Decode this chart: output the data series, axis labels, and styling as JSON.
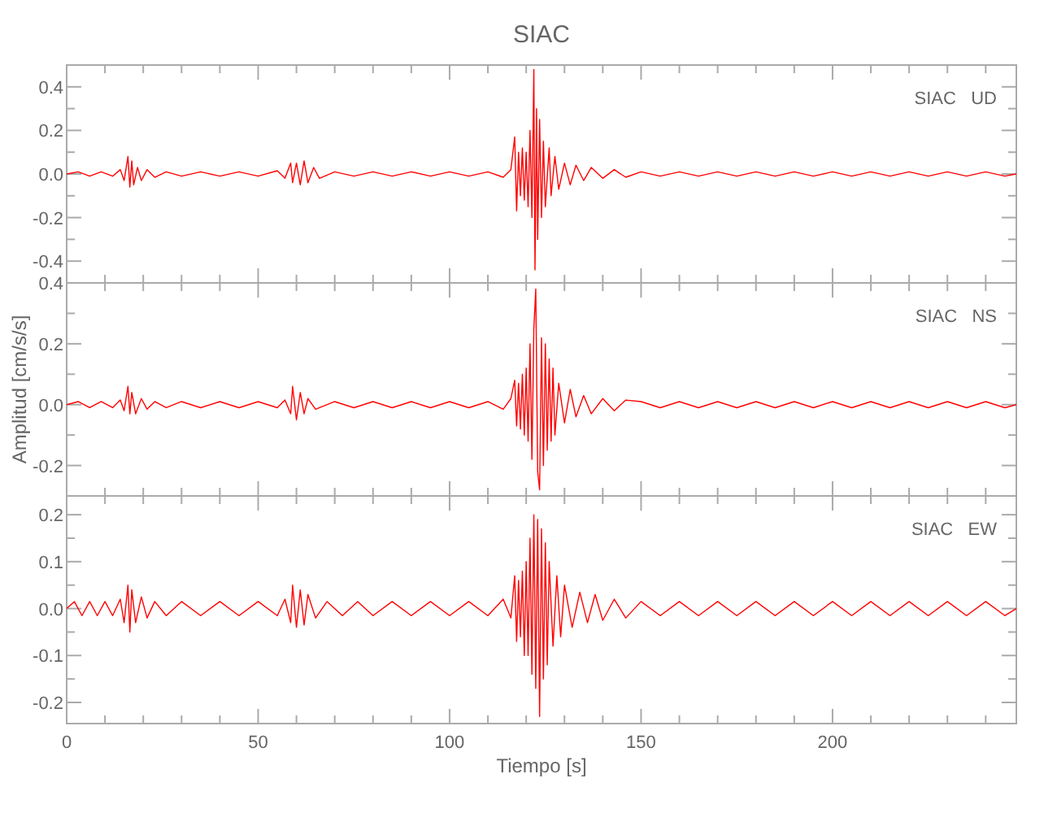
{
  "chart_data": [
    {
      "type": "line",
      "title": "SIAC",
      "annotations": [
        "SIAC   UD"
      ],
      "xlim": [
        0,
        248
      ],
      "xticks": [
        0,
        {
          "value": 10,
          "label": null
        },
        {
          "value": 20,
          "label": null
        },
        {
          "value": 30,
          "label": null
        },
        {
          "value": 40,
          "label": null
        },
        50,
        {
          "value": 60,
          "label": null
        },
        {
          "value": 70,
          "label": null
        },
        {
          "value": 80,
          "label": null
        },
        {
          "value": 90,
          "label": null
        },
        100,
        {
          "value": 110,
          "label": null
        },
        {
          "value": 120,
          "label": null
        },
        {
          "value": 130,
          "label": null
        },
        {
          "value": 140,
          "label": null
        },
        150,
        {
          "value": 160,
          "label": null
        },
        {
          "value": 170,
          "label": null
        },
        {
          "value": 180,
          "label": null
        },
        {
          "value": 190,
          "label": null
        },
        200,
        {
          "value": 210,
          "label": null
        },
        {
          "value": 220,
          "label": null
        },
        {
          "value": 230,
          "label": null
        },
        {
          "value": 240,
          "label": null
        }
      ],
      "ylim": [
        -0.5,
        0.5
      ],
      "yticks": [
        {
          "value": -0.4,
          "label": "-0.4"
        },
        {
          "value": -0.3,
          "label": null
        },
        {
          "value": -0.2,
          "label": "-0.2"
        },
        {
          "value": -0.1,
          "label": null
        },
        {
          "value": 0,
          "label": "0.0"
        },
        {
          "value": 0.1,
          "label": null
        },
        0.2,
        {
          "value": 0.3,
          "label": null
        },
        0.4
      ],
      "tick_labels": "y",
      "grid": false,
      "series": [
        {
          "color": "#ff0000",
          "x": [
            0,
            3,
            6,
            9,
            12,
            14,
            15,
            16,
            16.5,
            17,
            17.5,
            18.5,
            19.5,
            21,
            23,
            26,
            30,
            35,
            40,
            45,
            50,
            55,
            57,
            58.5,
            59,
            60,
            61,
            62,
            63,
            64.5,
            66,
            70,
            75,
            80,
            85,
            90,
            95,
            100,
            105,
            110,
            114,
            116,
            117,
            117.5,
            118,
            118.5,
            119,
            119.5,
            120,
            120.5,
            121,
            121.5,
            122,
            122.3,
            122.7,
            123,
            123.5,
            124,
            124.5,
            125,
            126,
            126.5,
            127.5,
            128.5,
            130,
            131.5,
            133,
            135,
            137,
            140,
            143,
            146,
            150,
            155,
            160,
            165,
            170,
            175,
            180,
            185,
            190,
            195,
            200,
            205,
            210,
            215,
            220,
            225,
            230,
            235,
            240,
            245,
            248
          ],
          "values": [
            0,
            0.01,
            -0.01,
            0.01,
            -0.01,
            0.02,
            -0.03,
            0.08,
            -0.06,
            0.06,
            -0.05,
            0.03,
            -0.03,
            0.02,
            -0.015,
            0.01,
            -0.01,
            0.01,
            -0.01,
            0.01,
            -0.01,
            0.015,
            -0.02,
            0.05,
            -0.04,
            0.05,
            -0.05,
            0.06,
            -0.04,
            0.03,
            -0.02,
            0.01,
            -0.01,
            0.01,
            -0.01,
            0.01,
            -0.01,
            0.01,
            -0.01,
            0.01,
            -0.015,
            0.02,
            0.17,
            -0.17,
            0.1,
            -0.1,
            0.12,
            -0.12,
            0.1,
            -0.15,
            0.2,
            -0.2,
            0.48,
            -0.44,
            0.3,
            -0.3,
            0.25,
            -0.2,
            0.15,
            -0.15,
            0.12,
            -0.1,
            0.08,
            -0.07,
            0.05,
            -0.05,
            0.04,
            -0.03,
            0.03,
            -0.02,
            0.02,
            -0.015,
            0.01,
            -0.01,
            0.01,
            -0.01,
            0.01,
            -0.01,
            0.01,
            -0.01,
            0.01,
            -0.01,
            0.01,
            -0.01,
            0.01,
            -0.01,
            0.01,
            -0.01,
            0.01,
            -0.01,
            0.01,
            -0.01,
            0
          ]
        }
      ]
    },
    {
      "type": "line",
      "ylabel": "Amplitud [cm/s/s]",
      "annotations": [
        "SIAC   NS"
      ],
      "xlim": [
        0,
        248
      ],
      "xticks": [
        0,
        {
          "value": 10,
          "label": null
        },
        {
          "value": 20,
          "label": null
        },
        {
          "value": 30,
          "label": null
        },
        {
          "value": 40,
          "label": null
        },
        50,
        {
          "value": 60,
          "label": null
        },
        {
          "value": 70,
          "label": null
        },
        {
          "value": 80,
          "label": null
        },
        {
          "value": 90,
          "label": null
        },
        100,
        {
          "value": 110,
          "label": null
        },
        {
          "value": 120,
          "label": null
        },
        {
          "value": 130,
          "label": null
        },
        {
          "value": 140,
          "label": null
        },
        150,
        {
          "value": 160,
          "label": null
        },
        {
          "value": 170,
          "label": null
        },
        {
          "value": 180,
          "label": null
        },
        {
          "value": 190,
          "label": null
        },
        200,
        {
          "value": 210,
          "label": null
        },
        {
          "value": 220,
          "label": null
        },
        {
          "value": 230,
          "label": null
        },
        {
          "value": 240,
          "label": null
        }
      ],
      "ylim": [
        -0.3,
        0.4
      ],
      "yticks": [
        {
          "value": -0.3,
          "label": null
        },
        {
          "value": -0.2,
          "label": "-0.2"
        },
        {
          "value": -0.1,
          "label": null
        },
        {
          "value": 0,
          "label": "0.0"
        },
        {
          "value": 0.1,
          "label": null
        },
        0.2,
        {
          "value": 0.3,
          "label": null
        },
        0.4
      ],
      "tick_labels": "y",
      "grid": false,
      "series": [
        {
          "color": "#ff0000",
          "x": [
            0,
            3,
            6,
            9,
            12,
            14,
            15,
            16,
            16.5,
            17,
            18,
            19.5,
            21,
            23,
            26,
            30,
            35,
            40,
            45,
            50,
            55,
            57,
            58.5,
            59,
            60,
            61,
            62,
            63,
            65,
            70,
            75,
            80,
            85,
            90,
            95,
            100,
            105,
            110,
            114,
            116,
            117,
            117.5,
            118,
            118.5,
            119,
            119.5,
            120,
            120.5,
            121,
            121.5,
            122,
            122.5,
            123,
            123.5,
            124,
            124.5,
            125,
            125.5,
            126,
            126.5,
            127,
            127.5,
            128.5,
            130,
            131.5,
            133,
            135,
            137,
            140,
            143,
            146,
            150,
            155,
            160,
            165,
            170,
            175,
            180,
            185,
            190,
            195,
            200,
            205,
            210,
            215,
            220,
            225,
            230,
            235,
            240,
            245,
            248
          ],
          "values": [
            0,
            0.01,
            -0.01,
            0.01,
            -0.01,
            0.015,
            -0.02,
            0.06,
            -0.03,
            0.04,
            -0.03,
            0.02,
            -0.015,
            0.01,
            -0.01,
            0.01,
            -0.01,
            0.01,
            -0.01,
            0.01,
            -0.01,
            0.015,
            -0.03,
            0.06,
            -0.05,
            0.04,
            -0.03,
            0.02,
            -0.015,
            0.01,
            -0.01,
            0.01,
            -0.01,
            0.01,
            -0.01,
            0.01,
            -0.01,
            0.01,
            -0.015,
            0.02,
            0.08,
            -0.07,
            0.07,
            -0.08,
            0.1,
            -0.1,
            0.12,
            -0.12,
            0.2,
            -0.18,
            0.25,
            0.38,
            -0.22,
            -0.28,
            0.22,
            -0.2,
            0.2,
            -0.15,
            0.15,
            -0.12,
            0.12,
            -0.1,
            0.07,
            -0.06,
            0.05,
            -0.04,
            0.03,
            -0.03,
            0.02,
            -0.02,
            0.015,
            0.01,
            -0.01,
            0.01,
            -0.01,
            0.01,
            -0.01,
            0.01,
            -0.01,
            0.01,
            -0.01,
            0.01,
            -0.01,
            0.01,
            -0.01,
            0.01,
            -0.01,
            0.01,
            -0.01,
            0.01,
            -0.01,
            0
          ]
        }
      ]
    },
    {
      "type": "line",
      "xlabel": "Tiempo [s]",
      "annotations": [
        "SIAC   EW"
      ],
      "xlim": [
        0,
        248
      ],
      "xticks": [
        0,
        {
          "value": 10,
          "label": null
        },
        {
          "value": 20,
          "label": null
        },
        {
          "value": 30,
          "label": null
        },
        {
          "value": 40,
          "label": null
        },
        50,
        {
          "value": 60,
          "label": null
        },
        {
          "value": 70,
          "label": null
        },
        {
          "value": 80,
          "label": null
        },
        {
          "value": 90,
          "label": null
        },
        100,
        {
          "value": 110,
          "label": null
        },
        {
          "value": 120,
          "label": null
        },
        {
          "value": 130,
          "label": null
        },
        {
          "value": 140,
          "label": null
        },
        150,
        {
          "value": 160,
          "label": null
        },
        {
          "value": 170,
          "label": null
        },
        {
          "value": 180,
          "label": null
        },
        {
          "value": 190,
          "label": null
        },
        200,
        {
          "value": 210,
          "label": null
        },
        {
          "value": 220,
          "label": null
        },
        {
          "value": 230,
          "label": null
        },
        {
          "value": 240,
          "label": null
        }
      ],
      "ylim": [
        -0.245,
        0.24
      ],
      "yticks": [
        {
          "value": -0.2,
          "label": "-0.2"
        },
        {
          "value": -0.15,
          "label": null
        },
        {
          "value": -0.1,
          "label": "-0.1"
        },
        {
          "value": -0.05,
          "label": null
        },
        {
          "value": 0,
          "label": "0.0"
        },
        {
          "value": 0.05,
          "label": null
        },
        0.1,
        {
          "value": 0.15,
          "label": null
        },
        0.2
      ],
      "grid": false,
      "series": [
        {
          "color": "#ff0000",
          "x": [
            0,
            2,
            4,
            6,
            8,
            10,
            12,
            14,
            15,
            16,
            16.5,
            17,
            18,
            19.5,
            21,
            23,
            26,
            30,
            35,
            40,
            45,
            50,
            55,
            57,
            58.5,
            59,
            60,
            61,
            62,
            63,
            65,
            68,
            72,
            76,
            80,
            85,
            90,
            95,
            100,
            105,
            110,
            114,
            116,
            117,
            117.5,
            118,
            118.5,
            119,
            119.5,
            120,
            120.5,
            121,
            121.5,
            122,
            122.5,
            123,
            123.5,
            124,
            124.5,
            125,
            125.5,
            126,
            127,
            128,
            129,
            130,
            132,
            134,
            136,
            138,
            140,
            143,
            146,
            150,
            155,
            160,
            165,
            170,
            175,
            180,
            185,
            190,
            195,
            200,
            205,
            210,
            215,
            220,
            225,
            230,
            235,
            240,
            245,
            248
          ],
          "values": [
            0,
            0.015,
            -0.015,
            0.015,
            -0.015,
            0.015,
            -0.015,
            0.02,
            -0.03,
            0.05,
            -0.05,
            0.04,
            -0.03,
            0.025,
            -0.02,
            0.015,
            -0.015,
            0.015,
            -0.015,
            0.015,
            -0.015,
            0.015,
            -0.015,
            0.02,
            -0.03,
            0.05,
            -0.04,
            0.04,
            -0.035,
            0.03,
            -0.02,
            0.015,
            -0.015,
            0.015,
            -0.015,
            0.015,
            -0.015,
            0.015,
            -0.015,
            0.015,
            -0.015,
            0.02,
            -0.02,
            0.07,
            -0.07,
            0.06,
            -0.06,
            0.08,
            -0.1,
            0.1,
            -0.1,
            0.15,
            -0.14,
            0.2,
            -0.17,
            0.19,
            -0.23,
            0.17,
            -0.15,
            0.14,
            -0.12,
            0.1,
            -0.08,
            0.07,
            -0.06,
            0.05,
            -0.04,
            0.035,
            -0.03,
            0.03,
            -0.025,
            0.02,
            -0.02,
            0.015,
            -0.015,
            0.015,
            -0.015,
            0.015,
            -0.015,
            0.015,
            -0.015,
            0.015,
            -0.015,
            0.015,
            -0.015,
            0.015,
            -0.015,
            0.015,
            -0.015,
            0.015,
            -0.015,
            0.015,
            -0.015,
            0
          ]
        }
      ]
    }
  ]
}
